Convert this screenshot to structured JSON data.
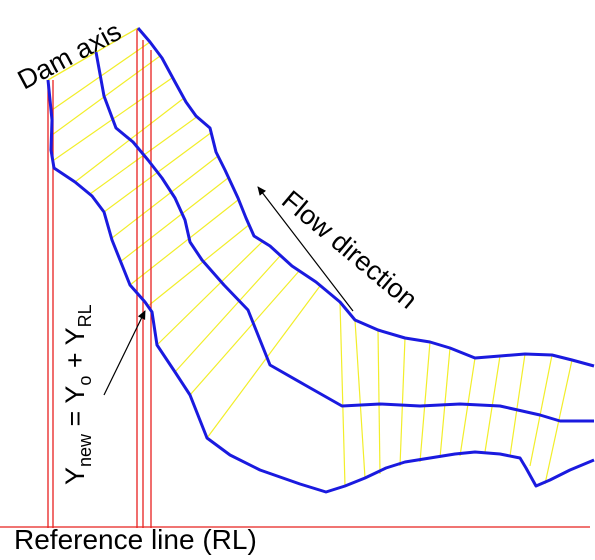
{
  "labels": {
    "dam_axis": "Dam axis",
    "flow_direction": "Flow direction",
    "reference_line": "Reference line (RL)",
    "formula": {
      "y1": "Y",
      "new_sub": "new",
      "eq": " = ",
      "y2": "Y",
      "o_sub": "o",
      "plus": " + ",
      "y3": "Y",
      "rl_sub": "RL"
    }
  },
  "colors": {
    "channel_boundary": "#1a1adf",
    "mesh_lines": "#f2ee2a",
    "reference_lines": "#e8201f",
    "arrows": "#000000"
  }
}
